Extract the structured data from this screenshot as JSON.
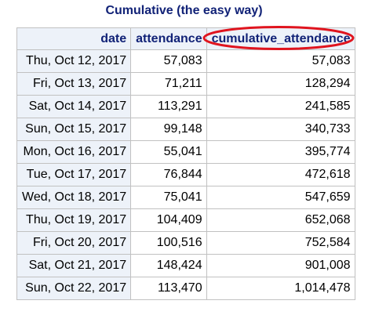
{
  "title": "Cumulative (the easy way)",
  "columns": {
    "date": "date",
    "attendance": "attendance",
    "cumulative": "cumulative_attendance"
  },
  "rows": [
    {
      "date": "Thu, Oct 12, 2017",
      "attendance": "57,083",
      "cumulative": "57,083"
    },
    {
      "date": "Fri, Oct 13, 2017",
      "attendance": "71,211",
      "cumulative": "128,294"
    },
    {
      "date": "Sat, Oct 14, 2017",
      "attendance": "113,291",
      "cumulative": "241,585"
    },
    {
      "date": "Sun, Oct 15, 2017",
      "attendance": "99,148",
      "cumulative": "340,733"
    },
    {
      "date": "Mon, Oct 16, 2017",
      "attendance": "55,041",
      "cumulative": "395,774"
    },
    {
      "date": "Tue, Oct 17, 2017",
      "attendance": "76,844",
      "cumulative": "472,618"
    },
    {
      "date": "Wed, Oct 18, 2017",
      "attendance": "75,041",
      "cumulative": "547,659"
    },
    {
      "date": "Thu, Oct 19, 2017",
      "attendance": "104,409",
      "cumulative": "652,068"
    },
    {
      "date": "Fri, Oct 20, 2017",
      "attendance": "100,516",
      "cumulative": "752,584"
    },
    {
      "date": "Sat, Oct 21, 2017",
      "attendance": "148,424",
      "cumulative": "901,008"
    },
    {
      "date": "Sun, Oct 22, 2017",
      "attendance": "113,470",
      "cumulative": "1,014,478"
    }
  ],
  "colors": {
    "header_text": "#112277",
    "header_background": "#edf2f9",
    "grid_border": "#c1c1c1",
    "highlight": "#e0141e"
  }
}
